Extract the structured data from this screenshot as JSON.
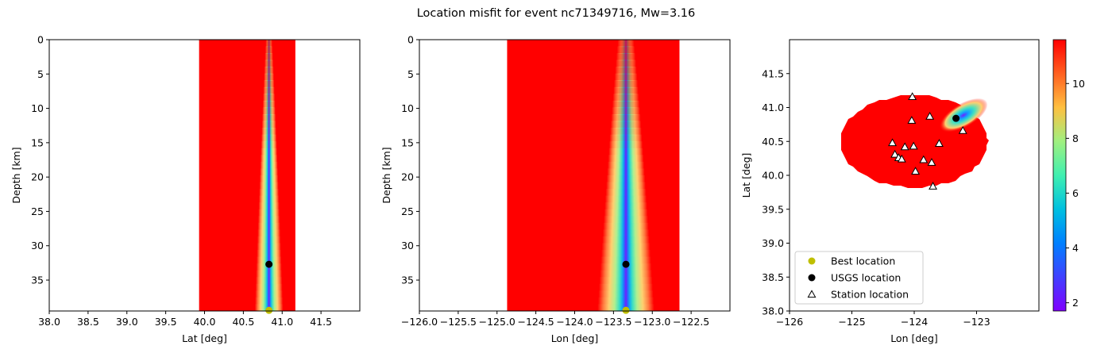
{
  "figure": {
    "title": "Location misfit for event nc71349716, Mw=3.16"
  },
  "colors": {
    "background_fill": "#ff0000",
    "best_marker": "#bfbf00",
    "usgs_marker": "#000000",
    "station_face": "#ffffff",
    "station_edge": "#000000"
  },
  "chart_data": [
    {
      "type": "heatmap",
      "panel": "lat-depth",
      "xlabel": "Lat [deg]",
      "ylabel": "Depth [km]",
      "xlim": [
        38.0,
        42.0
      ],
      "ylim": [
        39.5,
        0
      ],
      "xticks": [
        "38.0",
        "38.5",
        "39.0",
        "39.5",
        "40.0",
        "40.5",
        "41.0",
        "41.5"
      ],
      "yticks": [
        "0",
        "5",
        "10",
        "15",
        "20",
        "25",
        "30",
        "35"
      ],
      "colormap": "rainbow",
      "misfit_extent_x": [
        39.93,
        41.17
      ],
      "misfit_min_axis": 40.83,
      "best_location": {
        "x": 40.83,
        "y": 39.4
      },
      "usgs_location": {
        "x": 40.83,
        "y": 32.7
      }
    },
    {
      "type": "heatmap",
      "panel": "lon-depth",
      "xlabel": "Lon [deg]",
      "ylabel": "Depth [km]",
      "xlim": [
        -126.0,
        -122.0
      ],
      "ylim": [
        39.5,
        0
      ],
      "xticks": [
        "−126.0",
        "−125.5",
        "−125.0",
        "−124.5",
        "−124.0",
        "−123.5",
        "−123.0",
        "−122.5"
      ],
      "yticks": [
        "0",
        "5",
        "10",
        "15",
        "20",
        "25",
        "30",
        "35"
      ],
      "colormap": "rainbow",
      "misfit_extent_x": [
        -124.87,
        -122.65
      ],
      "misfit_min_axis": -123.34,
      "best_location": {
        "x": -123.34,
        "y": 39.4
      },
      "usgs_location": {
        "x": -123.34,
        "y": 32.7
      }
    },
    {
      "type": "heatmap",
      "panel": "lon-lat",
      "xlabel": "Lon [deg]",
      "ylabel": "Lat [deg]",
      "xlim": [
        -126.0,
        -122.0
      ],
      "ylim": [
        38.0,
        42.0
      ],
      "xticks": [
        "−126",
        "−125",
        "−124",
        "−123"
      ],
      "yticks": [
        "38.0",
        "38.5",
        "39.0",
        "39.5",
        "40.0",
        "40.5",
        "41.0",
        "41.5"
      ],
      "colormap": "rainbow",
      "misfit_region": {
        "center_lon": -124.0,
        "center_lat": 40.5,
        "radius_lon": 1.18,
        "radius_lat": 0.68
      },
      "minimum_valley": {
        "from": {
          "x": -123.52,
          "y": 40.72
        },
        "to": {
          "x": -122.9,
          "y": 41.05
        }
      },
      "usgs_location": {
        "x": -123.33,
        "y": 40.84
      },
      "stations": [
        {
          "x": -124.03,
          "y": 41.16
        },
        {
          "x": -123.75,
          "y": 40.87
        },
        {
          "x": -124.04,
          "y": 40.81
        },
        {
          "x": -123.22,
          "y": 40.66
        },
        {
          "x": -124.35,
          "y": 40.48
        },
        {
          "x": -123.6,
          "y": 40.47
        },
        {
          "x": -124.15,
          "y": 40.42
        },
        {
          "x": -124.01,
          "y": 40.43
        },
        {
          "x": -124.31,
          "y": 40.31
        },
        {
          "x": -124.25,
          "y": 40.26
        },
        {
          "x": -124.2,
          "y": 40.24
        },
        {
          "x": -123.85,
          "y": 40.23
        },
        {
          "x": -123.72,
          "y": 40.19
        },
        {
          "x": -123.98,
          "y": 40.06
        },
        {
          "x": -123.7,
          "y": 39.84
        }
      ],
      "legend": {
        "placement": "lower-left",
        "entries": [
          "Best location",
          "USGS location",
          "Station location"
        ]
      },
      "colorbar": {
        "range": [
          1.7,
          11.6
        ],
        "ticks": [
          "2",
          "4",
          "6",
          "8",
          "10"
        ]
      }
    }
  ]
}
